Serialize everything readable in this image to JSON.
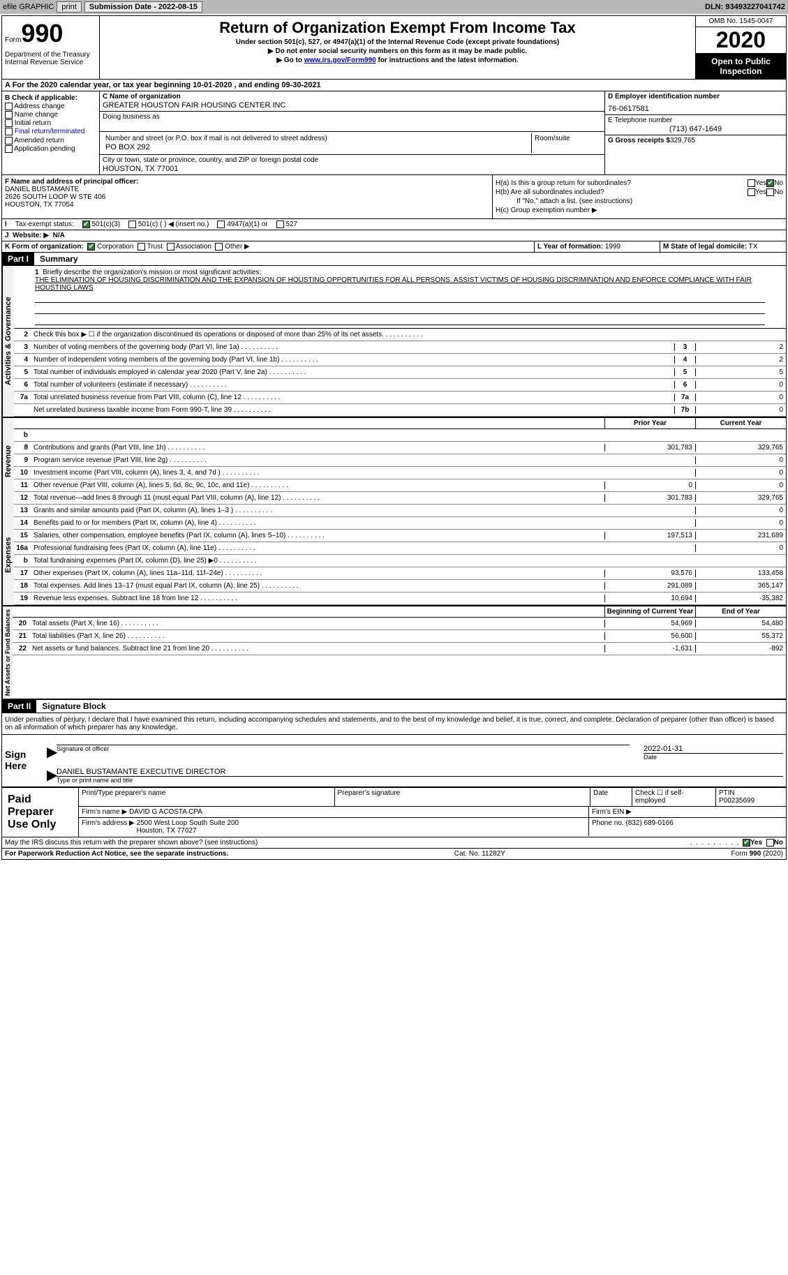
{
  "topbar": {
    "efile": "efile GRAPHIC",
    "print": "print",
    "submission_date_label": "Submission Date - 2022-08-15",
    "dln": "DLN: 93493227041742"
  },
  "header": {
    "form_label": "Form",
    "form_number": "990",
    "dept": "Department of the Treasury\nInternal Revenue Service",
    "title": "Return of Organization Exempt From Income Tax",
    "subtitle": "Under section 501(c), 527, or 4947(a)(1) of the Internal Revenue Code (except private foundations)",
    "note1": "▶ Do not enter social security numbers on this form as it may be made public.",
    "note2_prefix": "▶ Go to ",
    "note2_link": "www.irs.gov/Form990",
    "note2_suffix": " for instructions and the latest information.",
    "omb": "OMB No. 1545-0047",
    "year": "2020",
    "open": "Open to Public Inspection"
  },
  "row_a": "A For the 2020 calendar year, or tax year beginning 10-01-2020    , and ending 09-30-2021",
  "col_b": {
    "label": "B Check if applicable:",
    "items": [
      "Address change",
      "Name change",
      "Initial return",
      "Final return/terminated",
      "Amended return",
      "Application pending"
    ]
  },
  "col_c": {
    "name_label": "C Name of organization",
    "name": "GREATER HOUSTON FAIR HOUSING CENTER INC",
    "dba_label": "Doing business as",
    "street_label": "Number and street (or P.O. box if mail is not delivered to street address)",
    "room_label": "Room/suite",
    "street": "PO BOX 292",
    "city_label": "City or town, state or province, country, and ZIP or foreign postal code",
    "city": "HOUSTON, TX  77001"
  },
  "col_d": {
    "ein_label": "D Employer identification number",
    "ein": "76-0617581",
    "tel_label": "E Telephone number",
    "tel": "(713) 647-1649",
    "gross_label": "G Gross receipts $",
    "gross": "329,765"
  },
  "col_f": {
    "label": "F Name and address of principal officer:",
    "name": "DANIEL BUSTAMANTE",
    "addr1": "2626 SOUTH LOOP W STE 406",
    "addr2": "HOUSTON, TX  77054"
  },
  "col_h": {
    "ha_label": "H(a)  Is this a group return for subordinates?",
    "hb_label": "H(b)  Are all subordinates included?",
    "hb_note": "If \"No,\" attach a list. (see instructions)",
    "hc_label": "H(c)  Group exemption number ▶",
    "yes": "Yes",
    "no": "No"
  },
  "status_row": {
    "label_i": "I",
    "label": "Tax-exempt status:",
    "opts": [
      "501(c)(3)",
      "501(c) (  ) ◀ (insert no.)",
      "4947(a)(1) or",
      "527"
    ]
  },
  "website": {
    "label_j": "J",
    "label": "Website: ▶",
    "value": "N/A"
  },
  "row_k": {
    "k_label": "K Form of organization:",
    "k_opts": [
      "Corporation",
      "Trust",
      "Association",
      "Other ▶"
    ],
    "l_label": "L Year of formation:",
    "l_val": "1999",
    "m_label": "M State of legal domicile:",
    "m_val": "TX"
  },
  "part1": {
    "label": "Part I",
    "title": "Summary"
  },
  "mission": {
    "num": "1",
    "label": "Briefly describe the organization's mission or most significant activities:",
    "text": "THE ELIMINATION OF HOUSING DISCRIMINATION AND THE EXPANSION OF HOUSTING OPPORTUNITIES FOR ALL PERSONS. ASSIST VICTIMS OF HOUSING DISCRIMINATION AND ENFORCE COMPLIANCE WITH FAIR HOUSTING LAWS"
  },
  "governance_lines": [
    {
      "num": "2",
      "desc": "Check this box ▶ ☐ if the organization discontinued its operations or disposed of more than 25% of its net assets.",
      "ref": "",
      "v1": "",
      "v2": ""
    },
    {
      "num": "3",
      "desc": "Number of voting members of the governing body (Part VI, line 1a)",
      "ref": "3",
      "v2": "2"
    },
    {
      "num": "4",
      "desc": "Number of independent voting members of the governing body (Part VI, line 1b)",
      "ref": "4",
      "v2": "2"
    },
    {
      "num": "5",
      "desc": "Total number of individuals employed in calendar year 2020 (Part V, line 2a)",
      "ref": "5",
      "v2": "5"
    },
    {
      "num": "6",
      "desc": "Total number of volunteers (estimate if necessary)",
      "ref": "6",
      "v2": "0"
    },
    {
      "num": "7a",
      "desc": "Total unrelated business revenue from Part VIII, column (C), line 12",
      "ref": "7a",
      "v2": "0"
    },
    {
      "num": "",
      "desc": "Net unrelated business taxable income from Form 990-T, line 39",
      "ref": "7b",
      "v2": "0"
    }
  ],
  "col_headers": {
    "prior": "Prior Year",
    "current": "Current Year"
  },
  "revenue_lines": [
    {
      "num": "b",
      "desc": "",
      "ref": "",
      "v1": "",
      "v2": "",
      "grey": true
    },
    {
      "num": "8",
      "desc": "Contributions and grants (Part VIII, line 1h)",
      "v1": "301,783",
      "v2": "329,765"
    },
    {
      "num": "9",
      "desc": "Program service revenue (Part VIII, line 2g)",
      "v1": "",
      "v2": "0"
    },
    {
      "num": "10",
      "desc": "Investment income (Part VIII, column (A), lines 3, 4, and 7d )",
      "v1": "",
      "v2": "0"
    },
    {
      "num": "11",
      "desc": "Other revenue (Part VIII, column (A), lines 5, 6d, 8c, 9c, 10c, and 11e)",
      "v1": "0",
      "v2": "0"
    },
    {
      "num": "12",
      "desc": "Total revenue—add lines 8 through 11 (must equal Part VIII, column (A), line 12)",
      "v1": "301,783",
      "v2": "329,765"
    }
  ],
  "expense_lines": [
    {
      "num": "13",
      "desc": "Grants and similar amounts paid (Part IX, column (A), lines 1–3 )",
      "v1": "",
      "v2": "0"
    },
    {
      "num": "14",
      "desc": "Benefits paid to or for members (Part IX, column (A), line 4)",
      "v1": "",
      "v2": "0"
    },
    {
      "num": "15",
      "desc": "Salaries, other compensation, employee benefits (Part IX, column (A), lines 5–10)",
      "v1": "197,513",
      "v2": "231,689"
    },
    {
      "num": "16a",
      "desc": "Professional fundraising fees (Part IX, column (A), line 11e)",
      "v1": "",
      "v2": "0"
    },
    {
      "num": "b",
      "desc": "Total fundraising expenses (Part IX, column (D), line 25) ▶0",
      "v1": "",
      "v2": "",
      "grey": true
    },
    {
      "num": "17",
      "desc": "Other expenses (Part IX, column (A), lines 11a–11d, 11f–24e)",
      "v1": "93,576",
      "v2": "133,458"
    },
    {
      "num": "18",
      "desc": "Total expenses. Add lines 13–17 (must equal Part IX, column (A), line 25)",
      "v1": "291,089",
      "v2": "365,147"
    },
    {
      "num": "19",
      "desc": "Revenue less expenses. Subtract line 18 from line 12",
      "v1": "10,694",
      "v2": "-35,382"
    }
  ],
  "balance_headers": {
    "begin": "Beginning of Current Year",
    "end": "End of Year"
  },
  "balance_lines": [
    {
      "num": "20",
      "desc": "Total assets (Part X, line 16)",
      "v1": "54,969",
      "v2": "54,480"
    },
    {
      "num": "21",
      "desc": "Total liabilities (Part X, line 26)",
      "v1": "56,600",
      "v2": "55,372"
    },
    {
      "num": "22",
      "desc": "Net assets or fund balances. Subtract line 21 from line 20",
      "v1": "-1,631",
      "v2": "-892"
    }
  ],
  "part2": {
    "label": "Part II",
    "title": "Signature Block"
  },
  "penalties": "Under penalties of perjury, I declare that I have examined this return, including accompanying schedules and statements, and to the best of my knowledge and belief, it is true, correct, and complete. Declaration of preparer (other than officer) is based on all information of which preparer has any knowledge.",
  "sign": {
    "label": "Sign Here",
    "sig_of_officer": "Signature of officer",
    "date": "Date",
    "date_val": "2022-01-31",
    "name": "DANIEL BUSTAMANTE  EXECUTIVE DIRECTOR",
    "name_label": "Type or print name and title"
  },
  "preparer": {
    "label": "Paid Preparer Use Only",
    "print_label": "Print/Type preparer's name",
    "sig_label": "Preparer's signature",
    "date_label": "Date",
    "check_label": "Check ☐ if self-employed",
    "ptin_label": "PTIN",
    "ptin": "P00235699",
    "firm_name_label": "Firm's name    ▶",
    "firm_name": "DAVID G ACOSTA CPA",
    "firm_ein_label": "Firm's EIN ▶",
    "firm_addr_label": "Firm's address ▶",
    "firm_addr": "2500 West Loop South Suite 200\nHouston, TX  77027",
    "phone_label": "Phone no.",
    "phone": "(832) 689-0166"
  },
  "discuss": {
    "text": "May the IRS discuss this return with the preparer shown above? (see instructions)",
    "yes": "Yes",
    "no": "No"
  },
  "footer": {
    "left": "For Paperwork Reduction Act Notice, see the separate instructions.",
    "mid": "Cat. No. 11282Y",
    "right": "Form 990 (2020)"
  },
  "vert_labels": {
    "gov": "Activities & Governance",
    "rev": "Revenue",
    "exp": "Expenses",
    "bal": "Net Assets or Fund Balances"
  }
}
